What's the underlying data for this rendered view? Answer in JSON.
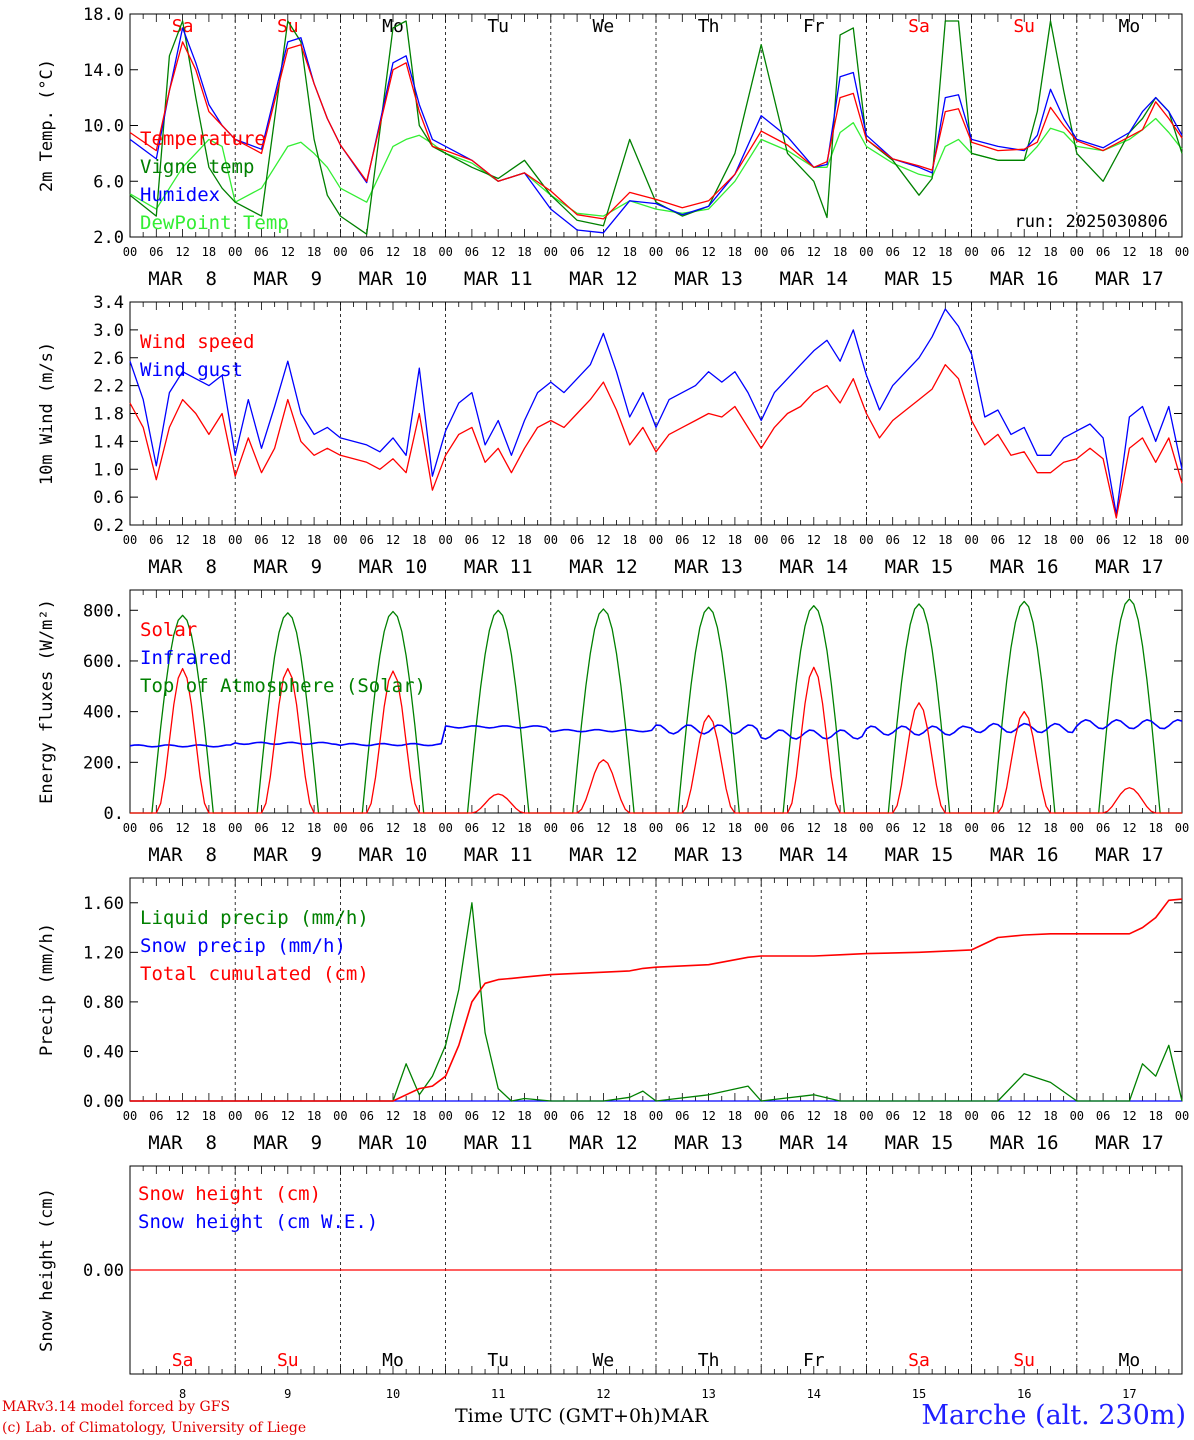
{
  "footer": {
    "model": "MARv3.14 model forced by GFS",
    "credit": "(c) Lab. of Climatology, University of Liege",
    "time_axis": "Time UTC (GMT+0h)",
    "month": "MAR",
    "location": "Marche (alt. 230m)"
  },
  "colors": {
    "red": "#ff0000",
    "green": "#008000",
    "blue": "#0000ff",
    "light_green": "#33ee33"
  },
  "chart_data": [
    {
      "type": "line",
      "ylabel": "2m Temp. (°C)",
      "ylim": [
        2.0,
        18.0
      ],
      "yticks": [
        "18.0",
        "14.0",
        "10.0",
        "6.0",
        "2.0"
      ],
      "ytick_values": [
        18,
        14,
        10,
        6,
        2
      ],
      "weekdays": [
        "Sa",
        "Su",
        "Mo",
        "Tu",
        "We",
        "Th",
        "Fr",
        "Sa",
        "Su",
        "Mo"
      ],
      "weekday_colors": [
        "#ff0000",
        "#ff0000",
        "#000000",
        "#000000",
        "#000000",
        "#000000",
        "#000000",
        "#ff0000",
        "#ff0000",
        "#000000"
      ],
      "run": "run: 2025030806",
      "x_hours": [
        0,
        6,
        9,
        12,
        15,
        18,
        21,
        24,
        30,
        36,
        39,
        42,
        45,
        48,
        54,
        60,
        63,
        66,
        69,
        72,
        78,
        84,
        90,
        96,
        102,
        108,
        114,
        120,
        126,
        132,
        138,
        144,
        150,
        156,
        159,
        162,
        165,
        168,
        174,
        180,
        183,
        186,
        189,
        192,
        198,
        204,
        207,
        210,
        213,
        216,
        222,
        228,
        231,
        234,
        237,
        240
      ],
      "series": [
        {
          "name": "Temperature",
          "color": "#ff0000",
          "values": [
            9.5,
            8.2,
            12.5,
            16.0,
            14.0,
            11.0,
            10.0,
            9.0,
            8.0,
            15.5,
            15.8,
            13.0,
            10.5,
            8.6,
            6.0,
            14.0,
            14.5,
            11.0,
            8.5,
            8.2,
            7.5,
            6.0,
            6.6,
            5.3,
            3.6,
            3.3,
            5.2,
            4.7,
            4.1,
            4.6,
            6.5,
            9.6,
            8.6,
            7.0,
            7.4,
            12.0,
            12.3,
            9.0,
            7.6,
            7.1,
            6.8,
            11.0,
            11.2,
            8.8,
            8.2,
            8.3,
            8.8,
            11.3,
            10.0,
            8.9,
            8.2,
            9.2,
            9.7,
            11.7,
            10.5,
            9.1
          ]
        },
        {
          "name": "Vigne temp",
          "color": "#008000",
          "values": [
            5.0,
            3.5,
            15.0,
            17.5,
            12.0,
            7.0,
            5.5,
            4.5,
            3.5,
            17.5,
            16.0,
            9.0,
            5.0,
            3.5,
            2.2,
            17.0,
            17.5,
            10.0,
            8.5,
            8.0,
            7.0,
            6.2,
            7.5,
            5.0,
            3.2,
            2.8,
            9.0,
            4.5,
            3.5,
            4.2,
            8.0,
            15.8,
            8.0,
            6.0,
            3.4,
            16.5,
            17.0,
            9.0,
            7.5,
            5.0,
            6.2,
            17.5,
            17.5,
            8.0,
            7.5,
            7.5,
            11.0,
            17.5,
            12.5,
            8.0,
            6.0,
            9.5,
            10.5,
            12.0,
            11.0,
            8.0
          ]
        },
        {
          "name": "Humidex",
          "color": "#0000ff",
          "values": [
            9.0,
            7.6,
            12.5,
            17.0,
            14.5,
            11.5,
            10.0,
            9.0,
            8.3,
            16.0,
            16.3,
            13.0,
            10.5,
            8.6,
            5.9,
            14.5,
            15.0,
            11.5,
            9.0,
            8.5,
            7.5,
            6.0,
            6.6,
            4.0,
            2.5,
            2.3,
            4.6,
            4.4,
            3.6,
            4.2,
            6.5,
            10.7,
            9.2,
            7.0,
            7.2,
            13.5,
            13.8,
            9.3,
            7.6,
            7.0,
            6.6,
            12.0,
            12.2,
            9.0,
            8.5,
            8.2,
            9.3,
            12.6,
            10.5,
            9.0,
            8.4,
            9.5,
            11.0,
            12.0,
            11.0,
            9.3
          ]
        },
        {
          "name": "DewPoint Temp",
          "color": "#33ee33",
          "values": [
            5.1,
            4.0,
            5.5,
            7.0,
            8.0,
            9.0,
            8.5,
            4.5,
            5.5,
            8.5,
            8.8,
            8.0,
            7.0,
            5.5,
            4.5,
            8.5,
            9.0,
            9.3,
            8.7,
            8.0,
            7.3,
            6.0,
            6.6,
            5.0,
            3.7,
            3.5,
            4.6,
            4.0,
            3.7,
            4.0,
            6.0,
            9.0,
            8.2,
            7.0,
            7.0,
            9.5,
            10.2,
            8.5,
            7.3,
            6.5,
            6.3,
            8.5,
            9.0,
            8.0,
            7.5,
            7.5,
            8.5,
            9.8,
            9.5,
            8.5,
            8.2,
            9.0,
            9.7,
            10.5,
            9.5,
            8.3
          ]
        }
      ]
    },
    {
      "type": "line",
      "ylabel": "10m Wind (m/s)",
      "ylim": [
        0.2,
        3.4
      ],
      "yticks": [
        "3.4",
        "3.0",
        "2.6",
        "2.2",
        "1.8",
        "1.4",
        "1.0",
        "0.6",
        "0.2"
      ],
      "ytick_values": [
        3.4,
        3.0,
        2.6,
        2.2,
        1.8,
        1.4,
        1.0,
        0.6,
        0.2
      ],
      "x_hours": [
        0,
        3,
        6,
        9,
        12,
        15,
        18,
        21,
        24,
        27,
        30,
        33,
        36,
        39,
        42,
        45,
        48,
        51,
        54,
        57,
        60,
        63,
        66,
        69,
        72,
        75,
        78,
        81,
        84,
        87,
        90,
        93,
        96,
        99,
        102,
        105,
        108,
        111,
        114,
        117,
        120,
        123,
        126,
        129,
        132,
        135,
        138,
        141,
        144,
        147,
        150,
        153,
        156,
        159,
        162,
        165,
        168,
        171,
        174,
        177,
        180,
        183,
        186,
        189,
        192,
        195,
        198,
        201,
        204,
        207,
        210,
        213,
        216,
        219,
        222,
        225,
        228,
        231,
        234,
        237,
        240
      ],
      "series": [
        {
          "name": "Wind speed",
          "color": "#ff0000",
          "values": [
            1.95,
            1.6,
            0.85,
            1.6,
            2.0,
            1.8,
            1.5,
            1.8,
            0.9,
            1.45,
            0.95,
            1.3,
            2.0,
            1.4,
            1.2,
            1.3,
            1.2,
            1.15,
            1.1,
            1.0,
            1.15,
            0.95,
            1.8,
            0.7,
            1.2,
            1.5,
            1.6,
            1.1,
            1.3,
            0.95,
            1.3,
            1.6,
            1.7,
            1.6,
            1.8,
            2.0,
            2.25,
            1.85,
            1.35,
            1.6,
            1.25,
            1.5,
            1.6,
            1.7,
            1.8,
            1.75,
            1.9,
            1.6,
            1.3,
            1.6,
            1.8,
            1.9,
            2.1,
            2.2,
            1.95,
            2.3,
            1.8,
            1.45,
            1.7,
            1.85,
            2.0,
            2.15,
            2.5,
            2.3,
            1.7,
            1.35,
            1.5,
            1.2,
            1.25,
            0.95,
            0.95,
            1.1,
            1.15,
            1.3,
            1.15,
            0.3,
            1.3,
            1.45,
            1.1,
            1.45,
            0.8
          ]
        },
        {
          "name": "Wind gust",
          "color": "#0000ff",
          "values": [
            2.55,
            2.0,
            1.05,
            2.1,
            2.4,
            2.3,
            2.2,
            2.35,
            1.2,
            2.0,
            1.3,
            1.9,
            2.55,
            1.8,
            1.5,
            1.6,
            1.45,
            1.4,
            1.35,
            1.25,
            1.45,
            1.2,
            2.45,
            0.9,
            1.55,
            1.95,
            2.1,
            1.35,
            1.7,
            1.2,
            1.7,
            2.1,
            2.25,
            2.1,
            2.3,
            2.5,
            2.95,
            2.4,
            1.75,
            2.1,
            1.6,
            2.0,
            2.1,
            2.2,
            2.4,
            2.25,
            2.4,
            2.1,
            1.7,
            2.1,
            2.3,
            2.5,
            2.7,
            2.85,
            2.55,
            3.0,
            2.35,
            1.85,
            2.2,
            2.4,
            2.6,
            2.9,
            3.3,
            3.05,
            2.65,
            1.75,
            1.85,
            1.5,
            1.6,
            1.2,
            1.2,
            1.45,
            1.55,
            1.65,
            1.45,
            0.35,
            1.75,
            1.9,
            1.4,
            1.9,
            1.0
          ]
        }
      ]
    },
    {
      "type": "line",
      "ylabel": "Energy fluxes (W/m²)",
      "ylim": [
        0,
        880
      ],
      "yticks": [
        "800.",
        "600.",
        "400.",
        "200.",
        "0."
      ],
      "ytick_values": [
        800,
        600,
        400,
        200,
        0
      ],
      "series": [
        {
          "name": "Solar",
          "color": "#ff0000",
          "daily_peak": [
            570,
            570,
            560,
            75,
            210,
            385,
            575,
            435,
            400,
            100
          ]
        },
        {
          "name": "Infrared",
          "color": "#0000ff",
          "daily_mean": [
            265,
            275,
            270,
            340,
            325,
            330,
            310,
            325,
            335,
            350
          ]
        },
        {
          "name": "Top of Atmosphere (Solar)",
          "color": "#008000",
          "daily_peak": [
            780,
            790,
            795,
            800,
            805,
            812,
            818,
            825,
            835,
            845
          ]
        }
      ]
    },
    {
      "type": "line",
      "ylabel": "Precip (mm/h)",
      "ylim": [
        0,
        1.8
      ],
      "yticks": [
        "1.60",
        "1.20",
        "0.80",
        "0.40",
        "0.00"
      ],
      "ytick_values": [
        1.6,
        1.2,
        0.8,
        0.4,
        0.0
      ],
      "x_hours": [
        0,
        60,
        63,
        66,
        69,
        72,
        75,
        78,
        81,
        84,
        87,
        90,
        96,
        108,
        114,
        117,
        120,
        132,
        141,
        144,
        156,
        162,
        168,
        180,
        192,
        198,
        204,
        210,
        216,
        228,
        231,
        234,
        237,
        240
      ],
      "series": [
        {
          "name": "Liquid precip (mm/h)",
          "color": "#008000",
          "values": [
            0.0,
            0.0,
            0.3,
            0.05,
            0.2,
            0.45,
            0.9,
            1.6,
            0.55,
            0.1,
            0.0,
            0.02,
            0.0,
            0.0,
            0.03,
            0.08,
            0.0,
            0.05,
            0.12,
            0.0,
            0.05,
            0.0,
            0.0,
            0.0,
            0.0,
            0.0,
            0.22,
            0.15,
            0.0,
            0.0,
            0.3,
            0.2,
            0.45,
            0.0
          ]
        },
        {
          "name": "Snow precip (mm/h)",
          "color": "#0000ff",
          "values": [
            0.0,
            0.0
          ]
        },
        {
          "name": "Total cumulated (cm)",
          "color": "#ff0000",
          "values": [
            0.0,
            0.0,
            0.05,
            0.1,
            0.12,
            0.2,
            0.45,
            0.8,
            0.95,
            0.98,
            0.99,
            1.0,
            1.02,
            1.04,
            1.05,
            1.07,
            1.08,
            1.1,
            1.16,
            1.17,
            1.17,
            1.18,
            1.19,
            1.2,
            1.22,
            1.32,
            1.34,
            1.35,
            1.35,
            1.35,
            1.4,
            1.48,
            1.62,
            1.63
          ]
        }
      ]
    },
    {
      "type": "line",
      "ylabel": "Snow height (cm)",
      "yticks": [
        "0.00"
      ],
      "series": [
        {
          "name": "Snow height (cm)",
          "color": "#ff0000",
          "values": [
            0.0,
            0.0
          ]
        },
        {
          "name": "Snow height (cm W.E.)",
          "color": "#0000ff",
          "values": [
            0.0,
            0.0
          ]
        }
      ]
    }
  ],
  "date_labels": [
    "MAR  8",
    "MAR  9",
    "MAR 10",
    "MAR 11",
    "MAR 12",
    "MAR 13",
    "MAR 14",
    "MAR 15",
    "MAR 16",
    "MAR 17"
  ],
  "hour_labels": [
    "00",
    "06",
    "12",
    "18"
  ],
  "end_hour_label": "00",
  "bottom_days": [
    "8",
    "9",
    "10",
    "11",
    "12",
    "13",
    "14",
    "15",
    "16",
    "17"
  ]
}
